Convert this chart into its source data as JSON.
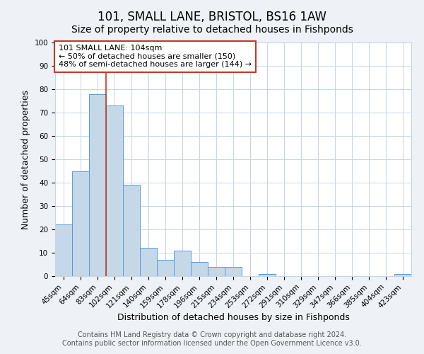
{
  "title": "101, SMALL LANE, BRISTOL, BS16 1AW",
  "subtitle": "Size of property relative to detached houses in Fishponds",
  "xlabel": "Distribution of detached houses by size in Fishponds",
  "ylabel": "Number of detached properties",
  "bar_labels": [
    "45sqm",
    "64sqm",
    "83sqm",
    "102sqm",
    "121sqm",
    "140sqm",
    "159sqm",
    "178sqm",
    "196sqm",
    "215sqm",
    "234sqm",
    "253sqm",
    "272sqm",
    "291sqm",
    "310sqm",
    "329sqm",
    "347sqm",
    "366sqm",
    "385sqm",
    "404sqm",
    "423sqm"
  ],
  "bar_values": [
    22,
    45,
    78,
    73,
    39,
    12,
    7,
    11,
    6,
    4,
    4,
    0,
    1,
    0,
    0,
    0,
    0,
    0,
    0,
    0,
    1
  ],
  "bar_color": "#c5d8e8",
  "bar_edge_color": "#5b9bd5",
  "annotation_box_text": "101 SMALL LANE: 104sqm\n← 50% of detached houses are smaller (150)\n48% of semi-detached houses are larger (144) →",
  "vline_x": 2.5,
  "vline_color": "#c0392b",
  "box_edge_color": "#c0392b",
  "ylim": [
    0,
    100
  ],
  "yticks": [
    0,
    10,
    20,
    30,
    40,
    50,
    60,
    70,
    80,
    90,
    100
  ],
  "footer_line1": "Contains HM Land Registry data © Crown copyright and database right 2024.",
  "footer_line2": "Contains public sector information licensed under the Open Government Licence v3.0.",
  "background_color": "#eef2f7",
  "plot_background_color": "#ffffff",
  "grid_color": "#c5d5e5",
  "title_fontsize": 12,
  "subtitle_fontsize": 10,
  "axis_label_fontsize": 9,
  "tick_fontsize": 7.5,
  "footer_fontsize": 7
}
